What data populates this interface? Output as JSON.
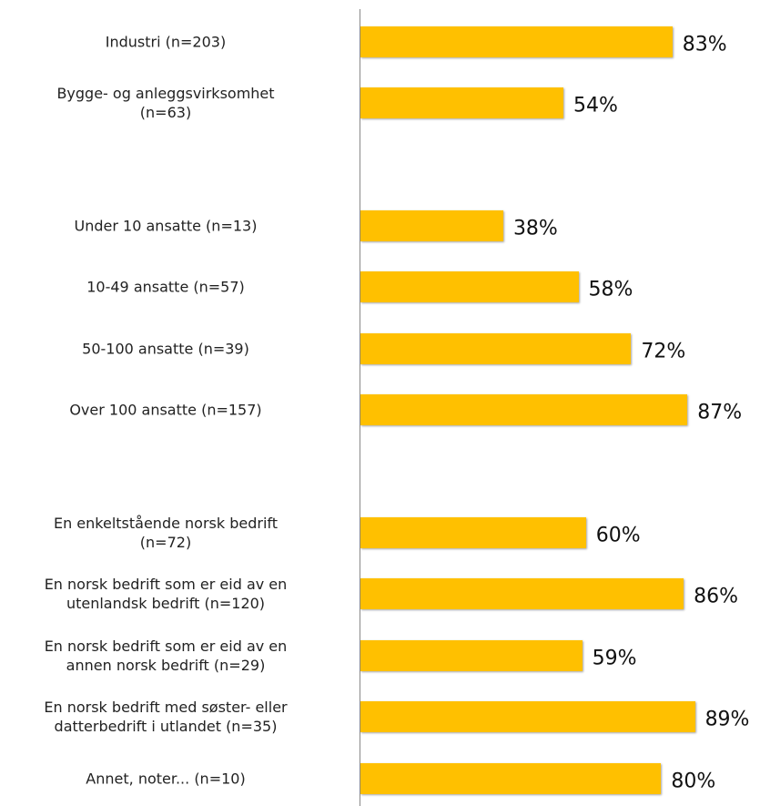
{
  "chart_data": {
    "type": "bar",
    "orientation": "horizontal",
    "categories": [
      "Industri (n=203)",
      "Bygge- og anleggsvirksomhet\n(n=63)",
      null,
      "Under 10 ansatte (n=13)",
      "10-49 ansatte (n=57)",
      "50-100 ansatte (n=39)",
      "Over 100 ansatte (n=157)",
      null,
      "En enkeltstående norsk bedrift\n(n=72)",
      "En norsk bedrift som er eid av en\nutenlandsk bedrift (n=120)",
      "En norsk bedrift som er eid av en\nannen norsk bedrift (n=29)",
      "En norsk bedrift med søster- eller\ndatterbedrift i utlandet (n=35)",
      "Annet, noter... (n=10)"
    ],
    "values": [
      83,
      54,
      null,
      38,
      58,
      72,
      87,
      null,
      60,
      86,
      59,
      89,
      80
    ],
    "value_labels": [
      "83%",
      "54%",
      null,
      "38%",
      "58%",
      "72%",
      "87%",
      null,
      "60%",
      "86%",
      "59%",
      "89%",
      "80%"
    ],
    "color": "#ffc000",
    "xlim": [
      0,
      100
    ]
  }
}
